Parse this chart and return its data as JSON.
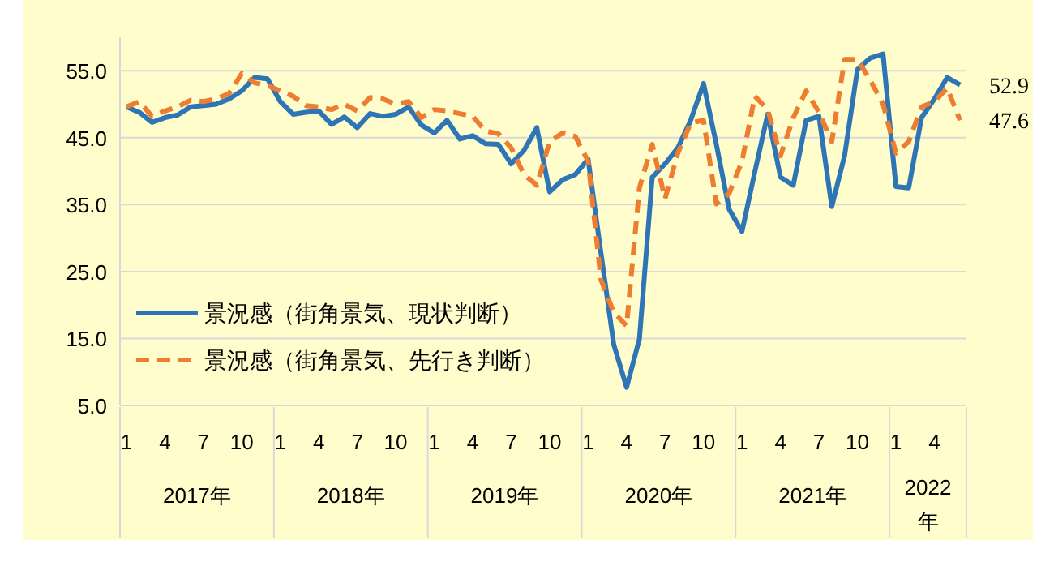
{
  "chart_data": {
    "type": "line",
    "categories": [
      "1",
      null,
      null,
      "4",
      null,
      null,
      "7",
      null,
      null,
      "10",
      null,
      null,
      "1",
      null,
      null,
      "4",
      null,
      null,
      "7",
      null,
      null,
      "10",
      null,
      null,
      "1",
      null,
      null,
      "4",
      null,
      null,
      "7",
      null,
      null,
      "10",
      null,
      null,
      "1",
      null,
      null,
      "4",
      null,
      null,
      "7",
      null,
      null,
      "10",
      null,
      null,
      "1",
      null,
      null,
      "4",
      null,
      null,
      "7",
      null,
      null,
      "10",
      null,
      null,
      "1",
      null,
      null,
      "4",
      null,
      null
    ],
    "series": [
      {
        "name": "景況感（街角景気、現状判断）",
        "color": "#2e75b6",
        "line_style": "solid",
        "values": [
          49.6,
          48.8,
          47.3,
          48.0,
          48.4,
          49.6,
          49.8,
          50.0,
          50.8,
          52.0,
          54.0,
          53.8,
          50.4,
          48.5,
          48.8,
          49.0,
          47.0,
          48.1,
          46.5,
          48.6,
          48.2,
          48.5,
          49.6,
          46.9,
          45.7,
          47.6,
          44.8,
          45.3,
          44.1,
          44.0,
          41.1,
          43.1,
          46.5,
          36.9,
          38.7,
          39.5,
          41.8,
          27.8,
          14.1,
          7.7,
          14.9,
          39.1,
          41.1,
          43.5,
          47.6,
          53.1,
          44.0,
          34.3,
          31.0,
          39.9,
          48.5,
          39.1,
          37.9,
          47.6,
          48.2,
          34.7,
          42.3,
          55.2,
          56.9,
          57.5,
          37.7,
          37.5,
          48.0,
          50.8,
          54.0,
          52.9
        ],
        "value_labels": [
          null,
          null,
          null,
          null,
          null,
          null,
          null,
          null,
          null,
          null,
          null,
          null,
          null,
          null,
          null,
          null,
          null,
          null,
          null,
          null,
          null,
          null,
          null,
          null,
          null,
          null,
          null,
          null,
          null,
          null,
          null,
          null,
          null,
          null,
          null,
          null,
          null,
          null,
          null,
          null,
          null,
          null,
          null,
          null,
          null,
          null,
          null,
          null,
          null,
          null,
          null,
          null,
          null,
          null,
          null,
          null,
          null,
          null,
          null,
          null,
          null,
          null,
          null,
          null,
          null,
          "52.9"
        ]
      },
      {
        "name": "景況感（街角景気、先行き判断）",
        "color": "#ed7d31",
        "line_style": "dashed",
        "values": [
          49.6,
          50.4,
          48.2,
          49.0,
          49.6,
          50.6,
          50.4,
          50.8,
          51.6,
          54.6,
          53.2,
          52.8,
          52.0,
          51.2,
          49.8,
          49.6,
          49.2,
          50.0,
          49.0,
          51.0,
          50.8,
          50.0,
          50.4,
          48.0,
          49.2,
          49.0,
          48.6,
          48.2,
          46.0,
          45.6,
          43.5,
          39.5,
          37.9,
          44.4,
          45.7,
          45.2,
          41.5,
          23.8,
          18.9,
          16.9,
          37.5,
          44.0,
          35.9,
          42.7,
          47.2,
          47.6,
          35.1,
          36.7,
          41.5,
          51.2,
          49.2,
          42.3,
          48.0,
          52.0,
          48.8,
          44.4,
          56.7,
          56.7,
          53.6,
          50.0,
          42.7,
          44.4,
          49.6,
          50.4,
          52.4,
          47.6
        ],
        "value_labels": [
          null,
          null,
          null,
          null,
          null,
          null,
          null,
          null,
          null,
          null,
          null,
          null,
          null,
          null,
          null,
          null,
          null,
          null,
          null,
          null,
          null,
          null,
          null,
          null,
          null,
          null,
          null,
          null,
          null,
          null,
          null,
          null,
          null,
          null,
          null,
          null,
          null,
          null,
          null,
          null,
          null,
          null,
          null,
          null,
          null,
          null,
          null,
          null,
          null,
          null,
          null,
          null,
          null,
          null,
          null,
          null,
          null,
          null,
          null,
          null,
          null,
          null,
          null,
          null,
          null,
          "47.6"
        ]
      }
    ],
    "annotations": [
      "2017年",
      "2018年",
      "2019年",
      "2020年",
      "2021年",
      "2022年"
    ],
    "ylim": [
      5,
      60
    ],
    "yticks": [
      {
        "value": 5,
        "label": "5.0"
      },
      {
        "value": 15,
        "label": "15.0"
      },
      {
        "value": 25,
        "label": "25.0"
      },
      {
        "value": 35,
        "label": "35.0"
      },
      {
        "value": 45,
        "label": "45.0"
      },
      {
        "value": 55,
        "label": "55.0"
      }
    ],
    "grid": "y",
    "legend": "bottom left",
    "marker": "none"
  }
}
